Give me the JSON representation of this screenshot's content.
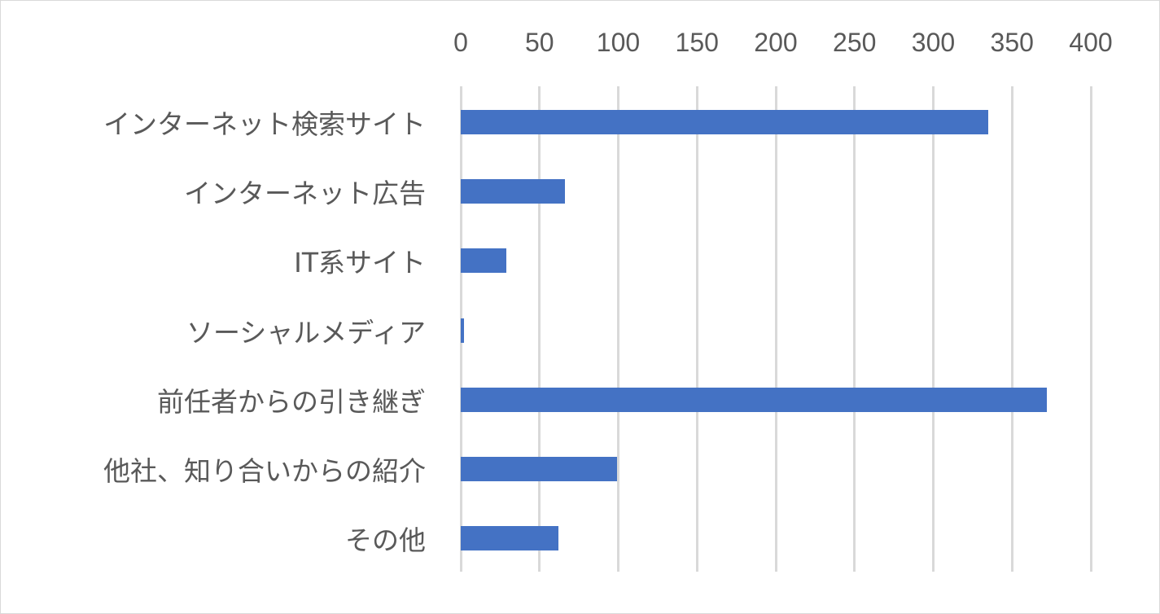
{
  "chart_data": {
    "type": "bar",
    "orientation": "horizontal",
    "title": "",
    "xlabel": "",
    "ylabel": "",
    "xlim": [
      0,
      400
    ],
    "ticks": [
      "0",
      "50",
      "100",
      "150",
      "200",
      "250",
      "300",
      "350",
      "400"
    ],
    "grid": true,
    "legend": null,
    "categories": [
      "インターネット検索サイト",
      "インターネット広告",
      "IT系サイト",
      "ソーシャルメディア",
      "前任者からの引き継ぎ",
      "他社、知り合いからの紹介",
      "その他"
    ],
    "values": [
      335,
      66,
      29,
      2,
      372,
      99,
      62
    ],
    "bar_color": "#4472c4"
  }
}
